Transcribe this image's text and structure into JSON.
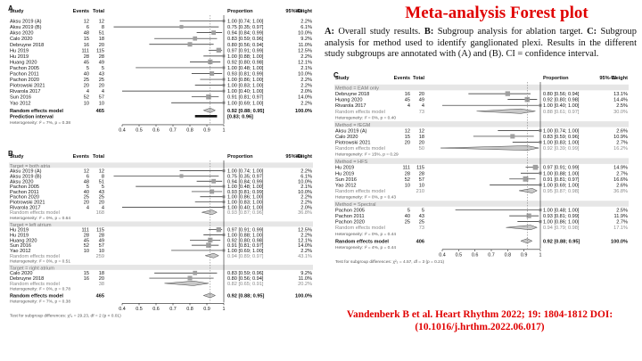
{
  "title": "Meta-analysis Forest plot",
  "caption": {
    "a_label": "A:",
    "a_text": "Overall study results.",
    "b_label": "B:",
    "b_text": "Subgroup analysis for ablation target.",
    "c_label": "C:",
    "c_text": "Subgroup analysis for method used to identify ganglionated plexi. Results in the different study subgroups are annotated with (A) and (B). CI = confidence interval."
  },
  "citation": {
    "line1": "Vandenberk B et al.  Heart Rhythm 2022; 19: 1804-1812 DOI:",
    "line2": "(10.1016/j.hrthm.2022.06.017)"
  },
  "headers": {
    "study": "Study",
    "events": "Events",
    "total": "Total",
    "proportion": "Proportion",
    "ci": "95%-CI",
    "weight": "Weight"
  },
  "axis_ticks": [
    "0.4",
    "0.5",
    "0.6",
    "0.7",
    "0.8",
    "0.9",
    "1"
  ],
  "colors": {
    "title": "#e00000",
    "square": "#a0a0a0",
    "diamond": "#c8c8c8",
    "subgroup_label": "#777777",
    "subgroup_bg": "#e6e6e6"
  },
  "panel_a": {
    "label": "A",
    "studies": [
      {
        "name": "Aksu 2019 (A)",
        "events": "12",
        "total": "12",
        "prop": 1.0,
        "lo": 0.74,
        "hi": 1.0,
        "ci": "1.00 [0.74; 1.00]",
        "weight": "2.2%"
      },
      {
        "name": "Aksu 2019 (B)",
        "events": "6",
        "total": "8",
        "prop": 0.75,
        "lo": 0.35,
        "hi": 0.97,
        "ci": "0.75 [0.35; 0.97]",
        "weight": "6.1%"
      },
      {
        "name": "Akso 2020",
        "events": "48",
        "total": "51",
        "prop": 0.94,
        "lo": 0.84,
        "hi": 0.99,
        "ci": "0.94 [0.84; 0.99]",
        "weight": "10.0%"
      },
      {
        "name": "Calo 2020",
        "events": "15",
        "total": "18",
        "prop": 0.83,
        "lo": 0.59,
        "hi": 0.96,
        "ci": "0.83 [0.59; 0.96]",
        "weight": "9.2%"
      },
      {
        "name": "Debruyne 2018",
        "events": "16",
        "total": "20",
        "prop": 0.8,
        "lo": 0.56,
        "hi": 0.94,
        "ci": "0.80 [0.56; 0.94]",
        "weight": "11.0%"
      },
      {
        "name": "Hu 2019",
        "events": "111",
        "total": "115",
        "prop": 0.97,
        "lo": 0.91,
        "hi": 0.99,
        "ci": "0.97 [0.91; 0.99]",
        "weight": "12.5%"
      },
      {
        "name": "Hu 2019",
        "events": "28",
        "total": "28",
        "prop": 1.0,
        "lo": 0.88,
        "hi": 1.0,
        "ci": "1.00 [0.88; 1.00]",
        "weight": "2.2%"
      },
      {
        "name": "Huang 2020",
        "events": "45",
        "total": "49",
        "prop": 0.92,
        "lo": 0.8,
        "hi": 0.98,
        "ci": "0.92 [0.80; 0.98]",
        "weight": "12.1%"
      },
      {
        "name": "Pachon 2005",
        "events": "5",
        "total": "5",
        "prop": 1.0,
        "lo": 0.48,
        "hi": 1.0,
        "ci": "1.00 [0.48; 1.00]",
        "weight": "2.1%"
      },
      {
        "name": "Pachon 2011",
        "events": "40",
        "total": "43",
        "prop": 0.93,
        "lo": 0.81,
        "hi": 0.99,
        "ci": "0.93 [0.81; 0.99]",
        "weight": "10.0%"
      },
      {
        "name": "Pachon 2020",
        "events": "25",
        "total": "25",
        "prop": 1.0,
        "lo": 0.86,
        "hi": 1.0,
        "ci": "1.00 [0.86; 1.00]",
        "weight": "2.2%"
      },
      {
        "name": "Piotrowski 2021",
        "events": "20",
        "total": "20",
        "prop": 1.0,
        "lo": 0.83,
        "hi": 1.0,
        "ci": "1.00 [0.83; 1.00]",
        "weight": "2.2%"
      },
      {
        "name": "Rivarola 2017",
        "events": "4",
        "total": "4",
        "prop": 1.0,
        "lo": 0.4,
        "hi": 1.0,
        "ci": "1.00 [0.40; 1.00]",
        "weight": "2.0%"
      },
      {
        "name": "Sun 2016",
        "events": "52",
        "total": "57",
        "prop": 0.91,
        "lo": 0.81,
        "hi": 0.97,
        "ci": "0.91 [0.81; 0.97]",
        "weight": "14.0%"
      },
      {
        "name": "Yao 2012",
        "events": "10",
        "total": "10",
        "prop": 1.0,
        "lo": 0.69,
        "hi": 1.0,
        "ci": "1.00 [0.69; 1.00]",
        "weight": "2.2%"
      }
    ],
    "random": {
      "label": "Random effects model",
      "total": "465",
      "prop": 0.92,
      "lo": 0.88,
      "hi": 0.95,
      "ci": "0.92 [0.88; 0.95]",
      "weight": "100.0%"
    },
    "prediction": {
      "label": "Prediction interval",
      "lo": 0.83,
      "hi": 0.96,
      "ci": "[0.83; 0.96]"
    },
    "heterogeneity": "Heterogeneity: I² = 7%, p = 0.38"
  },
  "panel_b": {
    "label": "B",
    "groups": [
      {
        "label": "Target = both atria",
        "studies": [
          {
            "name": "Aksu 2019 (A)",
            "events": "12",
            "total": "12",
            "prop": 1.0,
            "lo": 0.74,
            "hi": 1.0,
            "ci": "1.00 [0.74; 1.00]",
            "weight": "2.2%"
          },
          {
            "name": "Aksu 2019 (B)",
            "events": "6",
            "total": "8",
            "prop": 0.75,
            "lo": 0.35,
            "hi": 0.97,
            "ci": "0.75 [0.35; 0.97]",
            "weight": "6.1%"
          },
          {
            "name": "Aksu 2020",
            "events": "48",
            "total": "51",
            "prop": 0.94,
            "lo": 0.84,
            "hi": 0.99,
            "ci": "0.94 [0.84; 0.99]",
            "weight": "10.0%"
          },
          {
            "name": "Pachon 2005",
            "events": "5",
            "total": "5",
            "prop": 1.0,
            "lo": 0.48,
            "hi": 1.0,
            "ci": "1.00 [0.48; 1.00]",
            "weight": "2.1%"
          },
          {
            "name": "Pachon 2011",
            "events": "40",
            "total": "43",
            "prop": 0.93,
            "lo": 0.81,
            "hi": 0.99,
            "ci": "0.93 [0.81; 0.99]",
            "weight": "10.0%"
          },
          {
            "name": "Pachon 2020",
            "events": "25",
            "total": "25",
            "prop": 1.0,
            "lo": 0.86,
            "hi": 1.0,
            "ci": "1.00 [0.86; 1.00]",
            "weight": "2.2%"
          },
          {
            "name": "Piotrowski 2021",
            "events": "20",
            "total": "20",
            "prop": 1.0,
            "lo": 0.83,
            "hi": 1.0,
            "ci": "1.00 [0.83; 1.00]",
            "weight": "2.2%"
          },
          {
            "name": "Rivarola 2017",
            "events": "4",
            "total": "4",
            "prop": 1.0,
            "lo": 0.4,
            "hi": 1.0,
            "ci": "1.00 [0.40; 1.00]",
            "weight": "2.0%"
          }
        ],
        "summary": {
          "label": "Random effects model",
          "total": "168",
          "prop": 0.93,
          "lo": 0.87,
          "hi": 0.96,
          "ci": "0.93 [0.87; 0.96]",
          "weight": "36.8%"
        },
        "heterogeneity": "Heterogeneity: I² = 0%, p = 0.64"
      },
      {
        "label": "Target = left atrium",
        "studies": [
          {
            "name": "Hu 2019",
            "events": "111",
            "total": "115",
            "prop": 0.97,
            "lo": 0.91,
            "hi": 0.99,
            "ci": "0.97 [0.91; 0.99]",
            "weight": "12.5%"
          },
          {
            "name": "Hu 2019",
            "events": "28",
            "total": "28",
            "prop": 1.0,
            "lo": 0.88,
            "hi": 1.0,
            "ci": "1.00 [0.88; 1.00]",
            "weight": "2.2%"
          },
          {
            "name": "Huang 2020",
            "events": "45",
            "total": "49",
            "prop": 0.92,
            "lo": 0.8,
            "hi": 0.98,
            "ci": "0.92 [0.80; 0.98]",
            "weight": "12.1%"
          },
          {
            "name": "Sun 2016",
            "events": "52",
            "total": "57",
            "prop": 0.91,
            "lo": 0.81,
            "hi": 0.97,
            "ci": "0.91 [0.81; 0.97]",
            "weight": "14.0%"
          },
          {
            "name": "Yao 2012",
            "events": "10",
            "total": "10",
            "prop": 1.0,
            "lo": 0.69,
            "hi": 1.0,
            "ci": "1.00 [0.69; 1.00]",
            "weight": "2.2%"
          }
        ],
        "summary": {
          "label": "Random effects model",
          "total": "259",
          "prop": 0.94,
          "lo": 0.89,
          "hi": 0.97,
          "ci": "0.94 [0.89; 0.97]",
          "weight": "43.1%"
        },
        "heterogeneity": "Heterogeneity: I² = 0%, p = 0.51"
      },
      {
        "label": "Target = right atrium",
        "studies": [
          {
            "name": "Calo 2020",
            "events": "15",
            "total": "18",
            "prop": 0.83,
            "lo": 0.59,
            "hi": 0.96,
            "ci": "0.83 [0.59; 0.96]",
            "weight": "9.2%"
          },
          {
            "name": "Debruyne 2018",
            "events": "16",
            "total": "20",
            "prop": 0.8,
            "lo": 0.56,
            "hi": 0.94,
            "ci": "0.80 [0.56; 0.94]",
            "weight": "11.0%"
          }
        ],
        "summary": {
          "label": "Random effects model",
          "total": "38",
          "prop": 0.82,
          "lo": 0.65,
          "hi": 0.91,
          "ci": "0.82 [0.65; 0.91]",
          "weight": "20.2%"
        },
        "heterogeneity": "Heterogeneity: I² = 0%, p = 0.78"
      }
    ],
    "overall": {
      "label": "Random effects model",
      "total": "465",
      "prop": 0.92,
      "lo": 0.88,
      "hi": 0.95,
      "ci": "0.92 [0.88; 0.95]",
      "weight": "100.0%"
    },
    "heterogeneity": "Heterogeneity: I² = 7%, p = 0.38",
    "subgroup_test": "Test for subgroup differences: χ²₂ = 29.23, df = 2 (p < 0.01)"
  },
  "panel_c": {
    "label": "C",
    "groups": [
      {
        "label": "Method = EAM only",
        "studies": [
          {
            "name": "Debruyne 2018",
            "events": "16",
            "total": "20",
            "prop": 0.8,
            "lo": 0.56,
            "hi": 0.94,
            "ci": "0.80 [0.56; 0.94]",
            "weight": "13.1%"
          },
          {
            "name": "Huang 2020",
            "events": "45",
            "total": "49",
            "prop": 0.92,
            "lo": 0.8,
            "hi": 0.98,
            "ci": "0.92 [0.80; 0.98]",
            "weight": "14.4%"
          },
          {
            "name": "Rivarola 2017",
            "events": "4",
            "total": "4",
            "prop": 1.0,
            "lo": 0.4,
            "hi": 1.0,
            "ci": "1.00 [0.40; 1.00]",
            "weight": "2.5%"
          }
        ],
        "summary": {
          "label": "Random effects model",
          "total": "73",
          "prop": 0.88,
          "lo": 0.61,
          "hi": 0.97,
          "ci": "0.88 [0.61; 0.97]",
          "weight": "30.0%"
        },
        "heterogeneity": "Heterogeneity: I² = 0%, p = 0.40"
      },
      {
        "label": "Method = fEGM",
        "studies": [
          {
            "name": "Aksu 2019 (A)",
            "events": "12",
            "total": "12",
            "prop": 1.0,
            "lo": 0.74,
            "hi": 1.0,
            "ci": "1.00 [0.74; 1.00]",
            "weight": "2.6%"
          },
          {
            "name": "Calo 2020",
            "events": "15",
            "total": "18",
            "prop": 0.83,
            "lo": 0.59,
            "hi": 0.96,
            "ci": "0.83 [0.59; 0.96]",
            "weight": "10.9%"
          },
          {
            "name": "Piotrowski 2021",
            "events": "20",
            "total": "20",
            "prop": 1.0,
            "lo": 0.83,
            "hi": 1.0,
            "ci": "1.00 [0.83; 1.00]",
            "weight": "2.7%"
          }
        ],
        "summary": {
          "label": "Random effects model",
          "total": "50",
          "prop": 0.92,
          "lo": 0.39,
          "hi": 0.99,
          "ci": "0.92 [0.39; 0.99]",
          "weight": "16.2%"
        },
        "heterogeneity": "Heterogeneity: I² = 15%, p = 0.29"
      },
      {
        "label": "Method = HFS",
        "studies": [
          {
            "name": "Hu 2019",
            "events": "111",
            "total": "115",
            "prop": 0.97,
            "lo": 0.91,
            "hi": 0.99,
            "ci": "0.97 [0.91; 0.99]",
            "weight": "14.9%"
          },
          {
            "name": "Hu 2019",
            "events": "28",
            "total": "28",
            "prop": 1.0,
            "lo": 0.88,
            "hi": 1.0,
            "ci": "1.00 [0.88; 1.00]",
            "weight": "2.7%"
          },
          {
            "name": "Sun 2016",
            "events": "52",
            "total": "57",
            "prop": 0.91,
            "lo": 0.81,
            "hi": 0.97,
            "ci": "0.91 [0.81; 0.97]",
            "weight": "16.6%"
          },
          {
            "name": "Yao 2012",
            "events": "10",
            "total": "10",
            "prop": 1.0,
            "lo": 0.69,
            "hi": 1.0,
            "ci": "1.00 [0.69; 1.00]",
            "weight": "2.6%"
          }
        ],
        "summary": {
          "label": "Random effects model",
          "total": "210",
          "prop": 0.95,
          "lo": 0.87,
          "hi": 0.98,
          "ci": "0.95 [0.87; 0.98]",
          "weight": "36.8%"
        },
        "heterogeneity": "Heterogeneity: I² = 0%, p = 0.43"
      },
      {
        "label": "Method = Spectral",
        "studies": [
          {
            "name": "Pachon 2005",
            "events": "5",
            "total": "5",
            "prop": 1.0,
            "lo": 0.48,
            "hi": 1.0,
            "ci": "1.00 [0.48; 1.00]",
            "weight": "2.5%"
          },
          {
            "name": "Pachon 2011",
            "events": "40",
            "total": "43",
            "prop": 0.93,
            "lo": 0.81,
            "hi": 0.99,
            "ci": "0.93 [0.81; 0.99]",
            "weight": "11.9%"
          },
          {
            "name": "Pachon 2020",
            "events": "25",
            "total": "25",
            "prop": 1.0,
            "lo": 0.86,
            "hi": 1.0,
            "ci": "1.00 [0.86; 1.00]",
            "weight": "2.7%"
          }
        ],
        "summary": {
          "label": "Random effects model",
          "total": "73",
          "prop": 0.94,
          "lo": 0.79,
          "hi": 0.98,
          "ci": "0.94 [0.79; 0.98]",
          "weight": "17.1%"
        },
        "heterogeneity": "Heterogeneity: I² = 0%, p = 0.44"
      }
    ],
    "overall": {
      "label": "Random effects model",
      "total": "406",
      "prop": 0.92,
      "lo": 0.88,
      "hi": 0.95,
      "ci": "0.92 [0.88; 0.95]",
      "weight": "100.0%"
    },
    "heterogeneity": "Heterogeneity: I² = 4%, p = 0.44",
    "subgroup_test": "Test for subgroup differences: χ²₃ = 4.57, df = 3 (p = 0.21)"
  }
}
